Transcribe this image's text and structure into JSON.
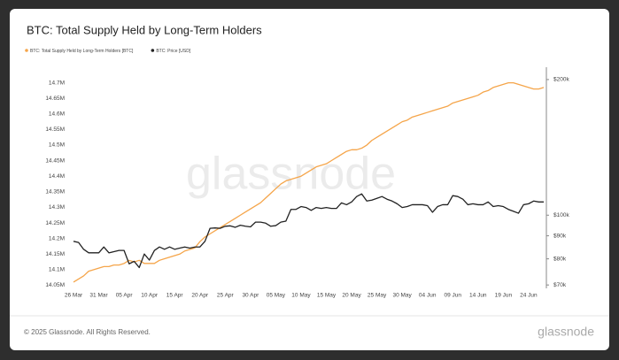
{
  "chart_data": {
    "type": "line",
    "title": "BTC: Total Supply Held by Long-Term Holders",
    "watermark": "glassnode",
    "footer": "© 2025 Glassnode. All Rights Reserved.",
    "logo": "glassnode",
    "categories": [
      "26 Mar",
      null,
      null,
      null,
      null,
      "31 Mar",
      null,
      null,
      null,
      null,
      "05 Apr",
      null,
      null,
      null,
      null,
      "10 Apr",
      null,
      null,
      null,
      null,
      "15 Apr",
      null,
      null,
      null,
      null,
      "20 Apr",
      null,
      null,
      null,
      null,
      "25 Apr",
      null,
      null,
      null,
      null,
      "30 Apr",
      null,
      null,
      null,
      null,
      "05 May",
      null,
      null,
      null,
      null,
      "10 May",
      null,
      null,
      null,
      null,
      "15 May",
      null,
      null,
      null,
      null,
      "20 May",
      null,
      null,
      null,
      null,
      "25 May",
      null,
      null,
      null,
      null,
      "30 May",
      null,
      null,
      null,
      null,
      "04 Jun",
      null,
      null,
      null,
      null,
      "09 Jun",
      null,
      null,
      null,
      null,
      "14 Jun",
      null,
      null,
      null,
      null,
      "19 Jun",
      null,
      null,
      null,
      null,
      "24 Jun",
      null,
      null,
      null
    ],
    "series": [
      {
        "name": "BTC: Total Supply Held by Long-Term Holders [BTC]",
        "color": "#f5a54a",
        "values": [
          14.06,
          14.07,
          14.08,
          14.095,
          14.1,
          14.105,
          14.11,
          14.11,
          14.115,
          14.115,
          14.12,
          14.13,
          14.125,
          14.13,
          14.12,
          14.12,
          14.12,
          14.13,
          14.135,
          14.14,
          14.145,
          14.15,
          14.16,
          14.165,
          14.17,
          14.19,
          14.205,
          14.215,
          14.225,
          14.235,
          14.245,
          14.255,
          14.265,
          14.275,
          14.285,
          14.295,
          14.305,
          14.315,
          14.33,
          14.345,
          14.36,
          14.375,
          14.385,
          14.39,
          14.395,
          14.4,
          14.41,
          14.42,
          14.43,
          14.435,
          14.44,
          14.45,
          14.46,
          14.47,
          14.48,
          14.485,
          14.485,
          14.49,
          14.5,
          14.515,
          14.525,
          14.535,
          14.545,
          14.555,
          14.565,
          14.575,
          14.58,
          14.59,
          14.595,
          14.6,
          14.605,
          14.61,
          14.615,
          14.62,
          14.625,
          14.635,
          14.64,
          14.645,
          14.65,
          14.655,
          14.66,
          14.67,
          14.675,
          14.685,
          14.69,
          14.695,
          14.7,
          14.7,
          14.695,
          14.69,
          14.685,
          14.68,
          14.68,
          14.685
        ]
      },
      {
        "name": "BTC: Price [USD]",
        "color": "#222222",
        "axis": "y2",
        "values": [
          87500,
          87000,
          84000,
          82500,
          82500,
          82500,
          85000,
          82500,
          83000,
          83500,
          83500,
          78000,
          79000,
          76500,
          82000,
          79500,
          83500,
          85000,
          84000,
          85000,
          84000,
          84500,
          85000,
          84500,
          85000,
          85000,
          87500,
          93500,
          93700,
          93500,
          94500,
          94700,
          94000,
          95000,
          94500,
          94200,
          96500,
          96500,
          96000,
          94500,
          94800,
          96500,
          97000,
          103000,
          103000,
          104500,
          104000,
          102500,
          104000,
          103500,
          104000,
          103500,
          103500,
          106500,
          105500,
          107000,
          110000,
          111500,
          107500,
          108000,
          109000,
          110000,
          108500,
          107500,
          106000,
          104000,
          104500,
          105500,
          105500,
          105500,
          105000,
          101500,
          104500,
          105500,
          105500,
          110500,
          110000,
          108500,
          105500,
          106000,
          105500,
          105500,
          107000,
          104500,
          105000,
          104500,
          103000,
          102000,
          101000,
          105500,
          106000,
          107500,
          107000,
          107000
        ]
      }
    ],
    "ylim": [
      14.04,
      14.75
    ],
    "yticks": [
      {
        "value": 14.05,
        "label": "14.05M"
      },
      {
        "value": 14.1,
        "label": "14.1M"
      },
      {
        "value": 14.15,
        "label": "14.15M"
      },
      {
        "value": 14.2,
        "label": "14.2M"
      },
      {
        "value": 14.25,
        "label": "14.25M"
      },
      {
        "value": 14.3,
        "label": "14.3M"
      },
      {
        "value": 14.35,
        "label": "14.35M"
      },
      {
        "value": 14.4,
        "label": "14.4M"
      },
      {
        "value": 14.45,
        "label": "14.45M"
      },
      {
        "value": 14.5,
        "label": "14.5M"
      },
      {
        "value": 14.55,
        "label": "14.55M"
      },
      {
        "value": 14.6,
        "label": "14.6M"
      },
      {
        "value": 14.65,
        "label": "14.65M"
      },
      {
        "value": 14.7,
        "label": "14.7M"
      }
    ],
    "y2lim": [
      68800,
      213000
    ],
    "y2log": true,
    "y2ticks": [
      {
        "value": 70000,
        "label": "$70k"
      },
      {
        "value": 80000,
        "label": "$80k"
      },
      {
        "value": 90000,
        "label": "$90k"
      },
      {
        "value": 100000,
        "label": "$100k"
      },
      {
        "value": 200000,
        "label": "$200k"
      }
    ],
    "grid": false
  }
}
